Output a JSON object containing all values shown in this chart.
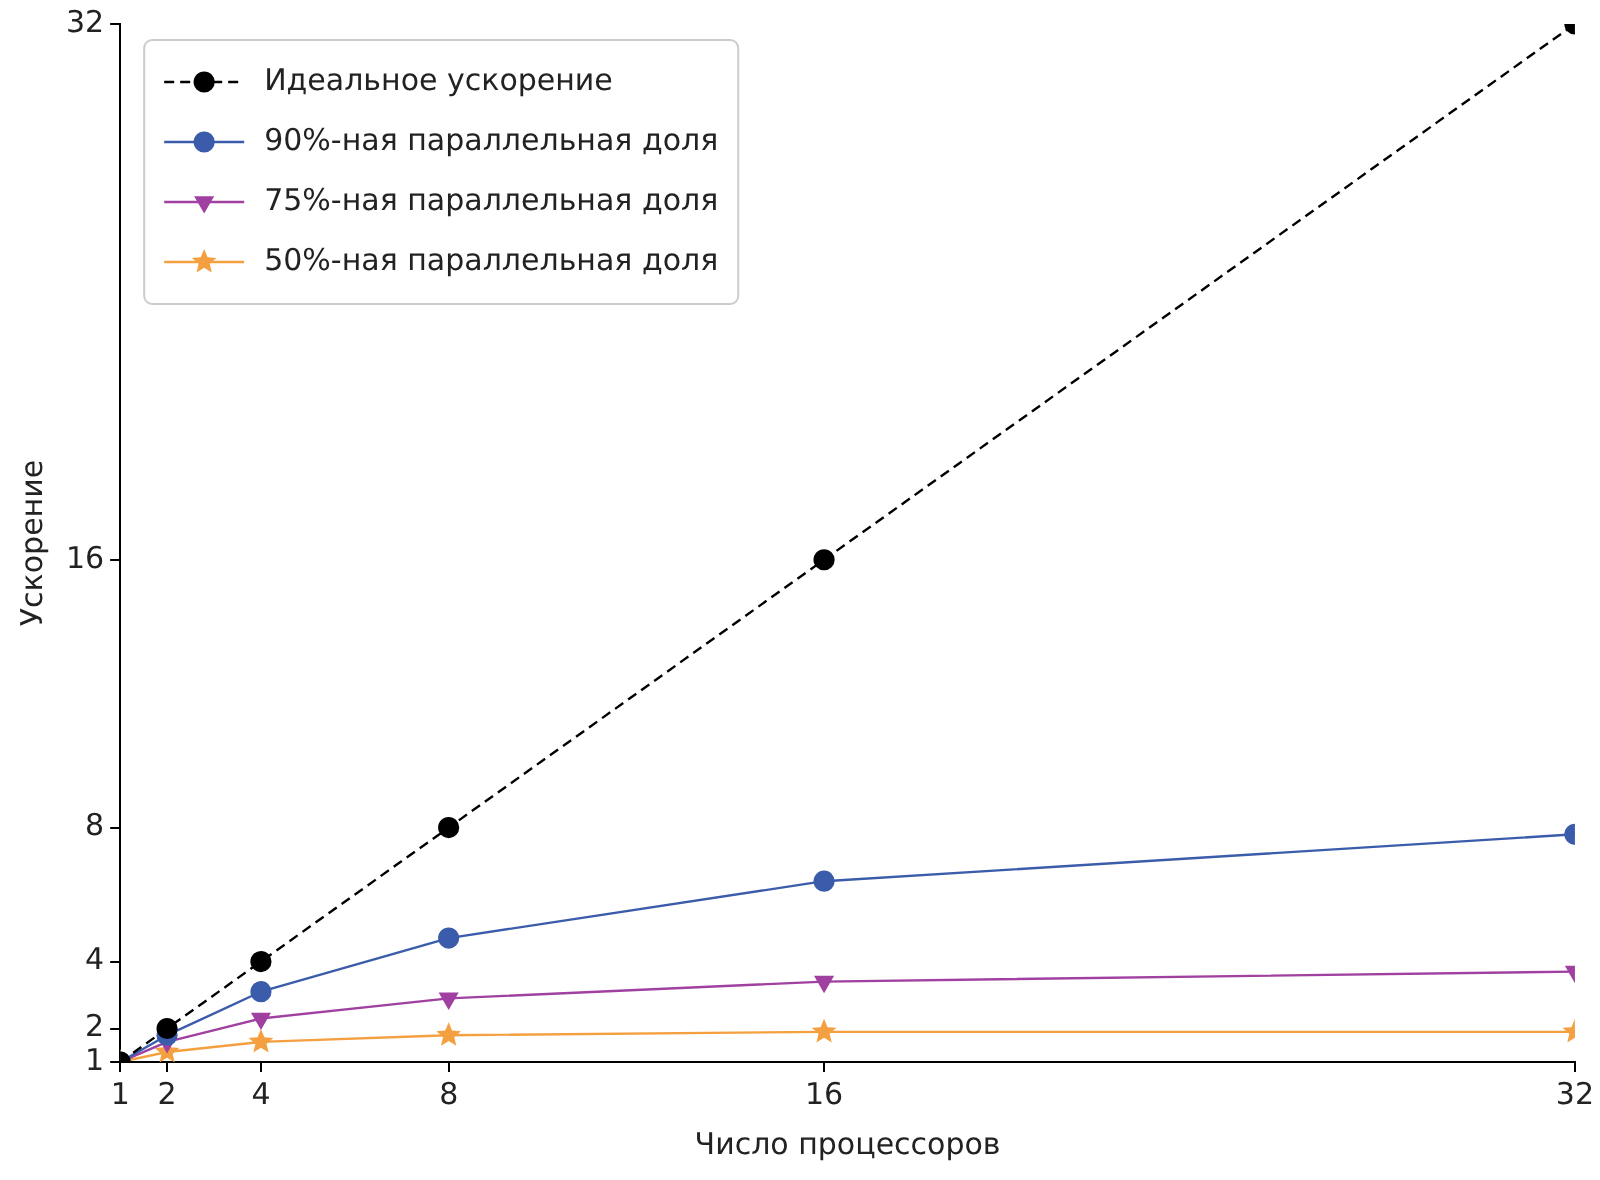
{
  "chart_data": {
    "type": "line",
    "xlabel": "Число процессоров",
    "ylabel": "Ускорение",
    "x": [
      1,
      2,
      4,
      8,
      16,
      32
    ],
    "series": [
      {
        "name": "Идеальное ускорение",
        "color": "#000000",
        "marker": "circle",
        "line_style": "dashed",
        "values": [
          1,
          2,
          4,
          8,
          16,
          32
        ]
      },
      {
        "name": "90%-ная параллельная доля",
        "color": "#3a5caa",
        "marker": "circle",
        "line_style": "solid",
        "values": [
          1,
          1.8,
          3.1,
          4.7,
          6.4,
          7.8
        ]
      },
      {
        "name": "75%-ная параллельная доля",
        "color": "#a040a0",
        "marker": "triangle",
        "line_style": "solid",
        "values": [
          1,
          1.6,
          2.3,
          2.9,
          3.4,
          3.7
        ]
      },
      {
        "name": "50%-ная параллельная доля",
        "color": "#f5a040",
        "marker": "star",
        "line_style": "solid",
        "values": [
          1,
          1.3,
          1.6,
          1.8,
          1.9,
          1.9
        ]
      }
    ],
    "xlim": [
      1,
      32
    ],
    "ylim": [
      1,
      32
    ],
    "xticks": [
      1,
      2,
      4,
      8,
      16,
      32
    ],
    "yticks": [
      1,
      2,
      4,
      8,
      16,
      32
    ],
    "grid": false,
    "legend": "top left"
  }
}
